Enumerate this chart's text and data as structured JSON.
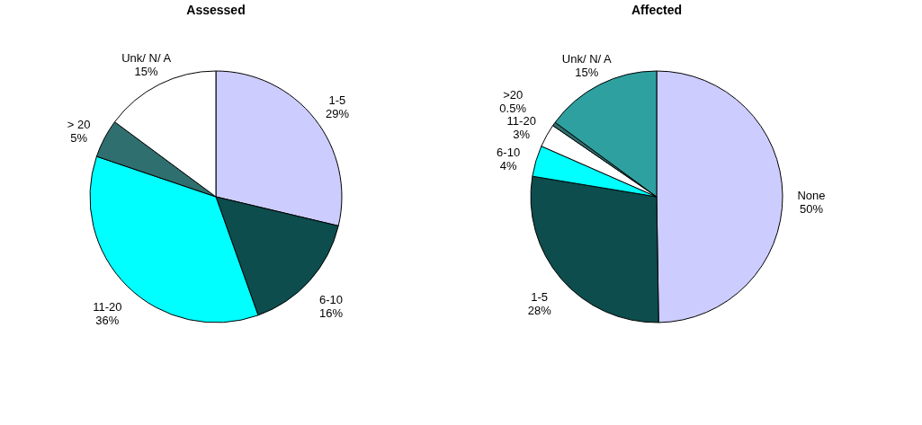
{
  "chart_data": [
    {
      "type": "pie",
      "title": "Assessed",
      "categories": [
        "1-5",
        "6-10",
        "11-20",
        "> 20",
        "Unk/ N/ A"
      ],
      "values": [
        29,
        16,
        36,
        5,
        15
      ],
      "value_labels": [
        "29%",
        "16%",
        "36%",
        "5%",
        "15%"
      ],
      "colors": [
        "#ccccff",
        "#0d4d4d",
        "#00ffff",
        "#2f6f6f",
        "#ffffff"
      ]
    },
    {
      "type": "pie",
      "title": "Affected",
      "categories": [
        "None",
        "1-5",
        "6-10",
        "11-20",
        ">20",
        "Unk/ N/ A"
      ],
      "values": [
        50,
        28,
        4,
        3,
        0.5,
        15
      ],
      "value_labels": [
        "50%",
        "28%",
        "4%",
        "3%",
        "0.5%",
        "15%"
      ],
      "colors": [
        "#ccccff",
        "#0d4d4d",
        "#00ffff",
        "#ffffff",
        "#2f6f6f",
        "#2fa0a0"
      ]
    }
  ]
}
